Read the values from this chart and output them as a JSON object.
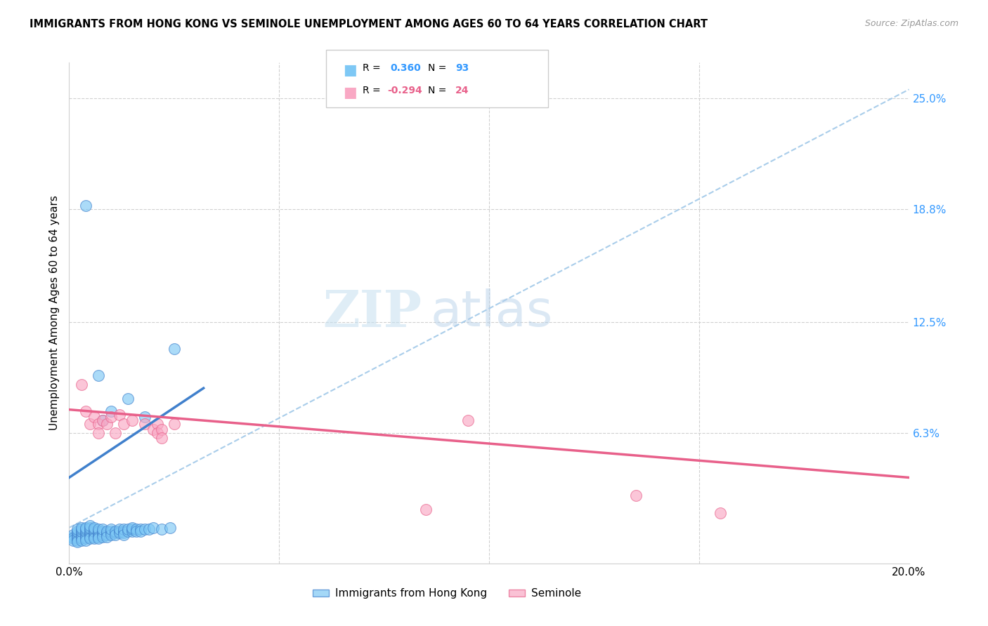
{
  "title": "IMMIGRANTS FROM HONG KONG VS SEMINOLE UNEMPLOYMENT AMONG AGES 60 TO 64 YEARS CORRELATION CHART",
  "source": "Source: ZipAtlas.com",
  "ylabel": "Unemployment Among Ages 60 to 64 years",
  "x_min": 0.0,
  "x_max": 0.2,
  "y_min": -0.01,
  "y_max": 0.27,
  "x_ticks": [
    0.0,
    0.05,
    0.1,
    0.15,
    0.2
  ],
  "x_tick_labels": [
    "0.0%",
    "",
    "",
    "",
    "20.0%"
  ],
  "y_tick_labels_right": [
    "25.0%",
    "18.8%",
    "12.5%",
    "6.3%"
  ],
  "y_tick_vals_right": [
    0.25,
    0.188,
    0.125,
    0.063
  ],
  "color_blue": "#7ec8f5",
  "color_pink": "#f9a8c4",
  "trend_blue_color": "#4080cc",
  "trend_pink_color": "#e8608a",
  "trend_dash_color": "#a0c8e8",
  "watermark_zip": "ZIP",
  "watermark_atlas": "atlas",
  "blue_trend_x": [
    0.0,
    0.032
  ],
  "blue_trend_y": [
    0.038,
    0.088
  ],
  "dash_trend_x": [
    0.0,
    0.2
  ],
  "dash_trend_y": [
    0.01,
    0.255
  ],
  "pink_trend_x": [
    0.0,
    0.2
  ],
  "pink_trend_y": [
    0.076,
    0.038
  ],
  "hk_points": [
    [
      0.001,
      0.005
    ],
    [
      0.001,
      0.006
    ],
    [
      0.001,
      0.004
    ],
    [
      0.001,
      0.003
    ],
    [
      0.002,
      0.007
    ],
    [
      0.002,
      0.006
    ],
    [
      0.002,
      0.005
    ],
    [
      0.002,
      0.004
    ],
    [
      0.002,
      0.003
    ],
    [
      0.002,
      0.002
    ],
    [
      0.002,
      0.008
    ],
    [
      0.002,
      0.009
    ],
    [
      0.003,
      0.007
    ],
    [
      0.003,
      0.006
    ],
    [
      0.003,
      0.005
    ],
    [
      0.003,
      0.004
    ],
    [
      0.003,
      0.003
    ],
    [
      0.003,
      0.008
    ],
    [
      0.003,
      0.009
    ],
    [
      0.003,
      0.01
    ],
    [
      0.004,
      0.007
    ],
    [
      0.004,
      0.006
    ],
    [
      0.004,
      0.005
    ],
    [
      0.004,
      0.004
    ],
    [
      0.004,
      0.008
    ],
    [
      0.004,
      0.009
    ],
    [
      0.004,
      0.003
    ],
    [
      0.004,
      0.01
    ],
    [
      0.005,
      0.007
    ],
    [
      0.005,
      0.006
    ],
    [
      0.005,
      0.005
    ],
    [
      0.005,
      0.008
    ],
    [
      0.005,
      0.009
    ],
    [
      0.005,
      0.004
    ],
    [
      0.005,
      0.01
    ],
    [
      0.005,
      0.011
    ],
    [
      0.006,
      0.007
    ],
    [
      0.006,
      0.006
    ],
    [
      0.006,
      0.005
    ],
    [
      0.006,
      0.008
    ],
    [
      0.006,
      0.009
    ],
    [
      0.006,
      0.004
    ],
    [
      0.006,
      0.01
    ],
    [
      0.007,
      0.007
    ],
    [
      0.007,
      0.006
    ],
    [
      0.007,
      0.008
    ],
    [
      0.007,
      0.009
    ],
    [
      0.007,
      0.005
    ],
    [
      0.007,
      0.004
    ],
    [
      0.008,
      0.007
    ],
    [
      0.008,
      0.006
    ],
    [
      0.008,
      0.008
    ],
    [
      0.008,
      0.005
    ],
    [
      0.008,
      0.009
    ],
    [
      0.009,
      0.007
    ],
    [
      0.009,
      0.006
    ],
    [
      0.009,
      0.008
    ],
    [
      0.009,
      0.005
    ],
    [
      0.01,
      0.007
    ],
    [
      0.01,
      0.008
    ],
    [
      0.01,
      0.006
    ],
    [
      0.01,
      0.009
    ],
    [
      0.011,
      0.007
    ],
    [
      0.011,
      0.008
    ],
    [
      0.011,
      0.006
    ],
    [
      0.012,
      0.008
    ],
    [
      0.012,
      0.007
    ],
    [
      0.012,
      0.009
    ],
    [
      0.013,
      0.008
    ],
    [
      0.013,
      0.007
    ],
    [
      0.013,
      0.009
    ],
    [
      0.013,
      0.006
    ],
    [
      0.014,
      0.008
    ],
    [
      0.014,
      0.009
    ],
    [
      0.015,
      0.008
    ],
    [
      0.015,
      0.009
    ],
    [
      0.015,
      0.01
    ],
    [
      0.016,
      0.009
    ],
    [
      0.016,
      0.008
    ],
    [
      0.017,
      0.009
    ],
    [
      0.017,
      0.008
    ],
    [
      0.018,
      0.009
    ],
    [
      0.019,
      0.009
    ],
    [
      0.02,
      0.01
    ],
    [
      0.022,
      0.009
    ],
    [
      0.024,
      0.01
    ],
    [
      0.025,
      0.11
    ],
    [
      0.004,
      0.19
    ],
    [
      0.007,
      0.095
    ],
    [
      0.008,
      0.07
    ],
    [
      0.01,
      0.075
    ],
    [
      0.014,
      0.082
    ],
    [
      0.018,
      0.072
    ]
  ],
  "seminole_points": [
    [
      0.003,
      0.09
    ],
    [
      0.004,
      0.075
    ],
    [
      0.005,
      0.068
    ],
    [
      0.006,
      0.072
    ],
    [
      0.007,
      0.068
    ],
    [
      0.007,
      0.063
    ],
    [
      0.008,
      0.07
    ],
    [
      0.009,
      0.068
    ],
    [
      0.01,
      0.072
    ],
    [
      0.011,
      0.063
    ],
    [
      0.012,
      0.073
    ],
    [
      0.013,
      0.068
    ],
    [
      0.015,
      0.07
    ],
    [
      0.018,
      0.068
    ],
    [
      0.02,
      0.065
    ],
    [
      0.021,
      0.068
    ],
    [
      0.021,
      0.063
    ],
    [
      0.022,
      0.065
    ],
    [
      0.025,
      0.068
    ],
    [
      0.022,
      0.06
    ],
    [
      0.095,
      0.07
    ],
    [
      0.135,
      0.028
    ],
    [
      0.085,
      0.02
    ],
    [
      0.155,
      0.018
    ]
  ]
}
